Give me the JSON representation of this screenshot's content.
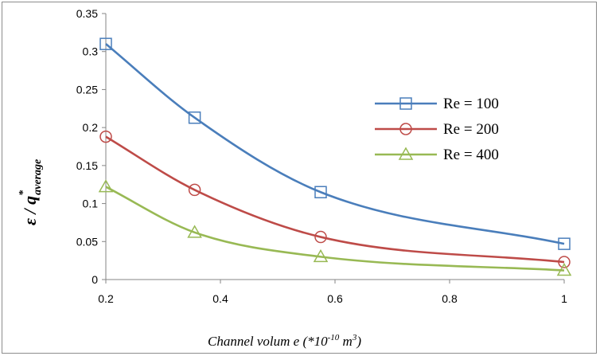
{
  "chart_data": {
    "type": "line",
    "title": "",
    "xlabel": {
      "main": "Channel volum e (*10",
      "exponent": "-10",
      "unit": " m",
      "unit_exponent": "3",
      "close": ")"
    },
    "ylabel": {
      "main": "ε / q",
      "superscript": "*",
      "subscript": "average"
    },
    "xlim": [
      0.2,
      1.0
    ],
    "ylim": [
      0,
      0.35
    ],
    "xticks": [
      "0.2",
      "0.4",
      "0.6",
      "0.8",
      "1"
    ],
    "xtick_values": [
      0.2,
      0.4,
      0.6,
      0.8,
      1.0
    ],
    "yticks": [
      "0",
      "0.05",
      "0.1",
      "0.15",
      "0.2",
      "0.25",
      "0.3",
      "0.35"
    ],
    "ytick_values": [
      0,
      0.05,
      0.1,
      0.15,
      0.2,
      0.25,
      0.3,
      0.35
    ],
    "grid": false,
    "legend_position": "right",
    "series": [
      {
        "name": "Re = 100",
        "color": "#4a7ebb",
        "marker": "square",
        "x": [
          0.2,
          0.355,
          0.575,
          1.0
        ],
        "y": [
          0.31,
          0.213,
          0.115,
          0.047
        ]
      },
      {
        "name": "Re = 200",
        "color": "#be4b48",
        "marker": "circle",
        "x": [
          0.2,
          0.355,
          0.575,
          1.0
        ],
        "y": [
          0.188,
          0.118,
          0.056,
          0.023
        ]
      },
      {
        "name": "Re = 400",
        "color": "#98b954",
        "marker": "triangle",
        "x": [
          0.2,
          0.355,
          0.575,
          1.0
        ],
        "y": [
          0.122,
          0.062,
          0.03,
          0.012
        ]
      }
    ]
  }
}
